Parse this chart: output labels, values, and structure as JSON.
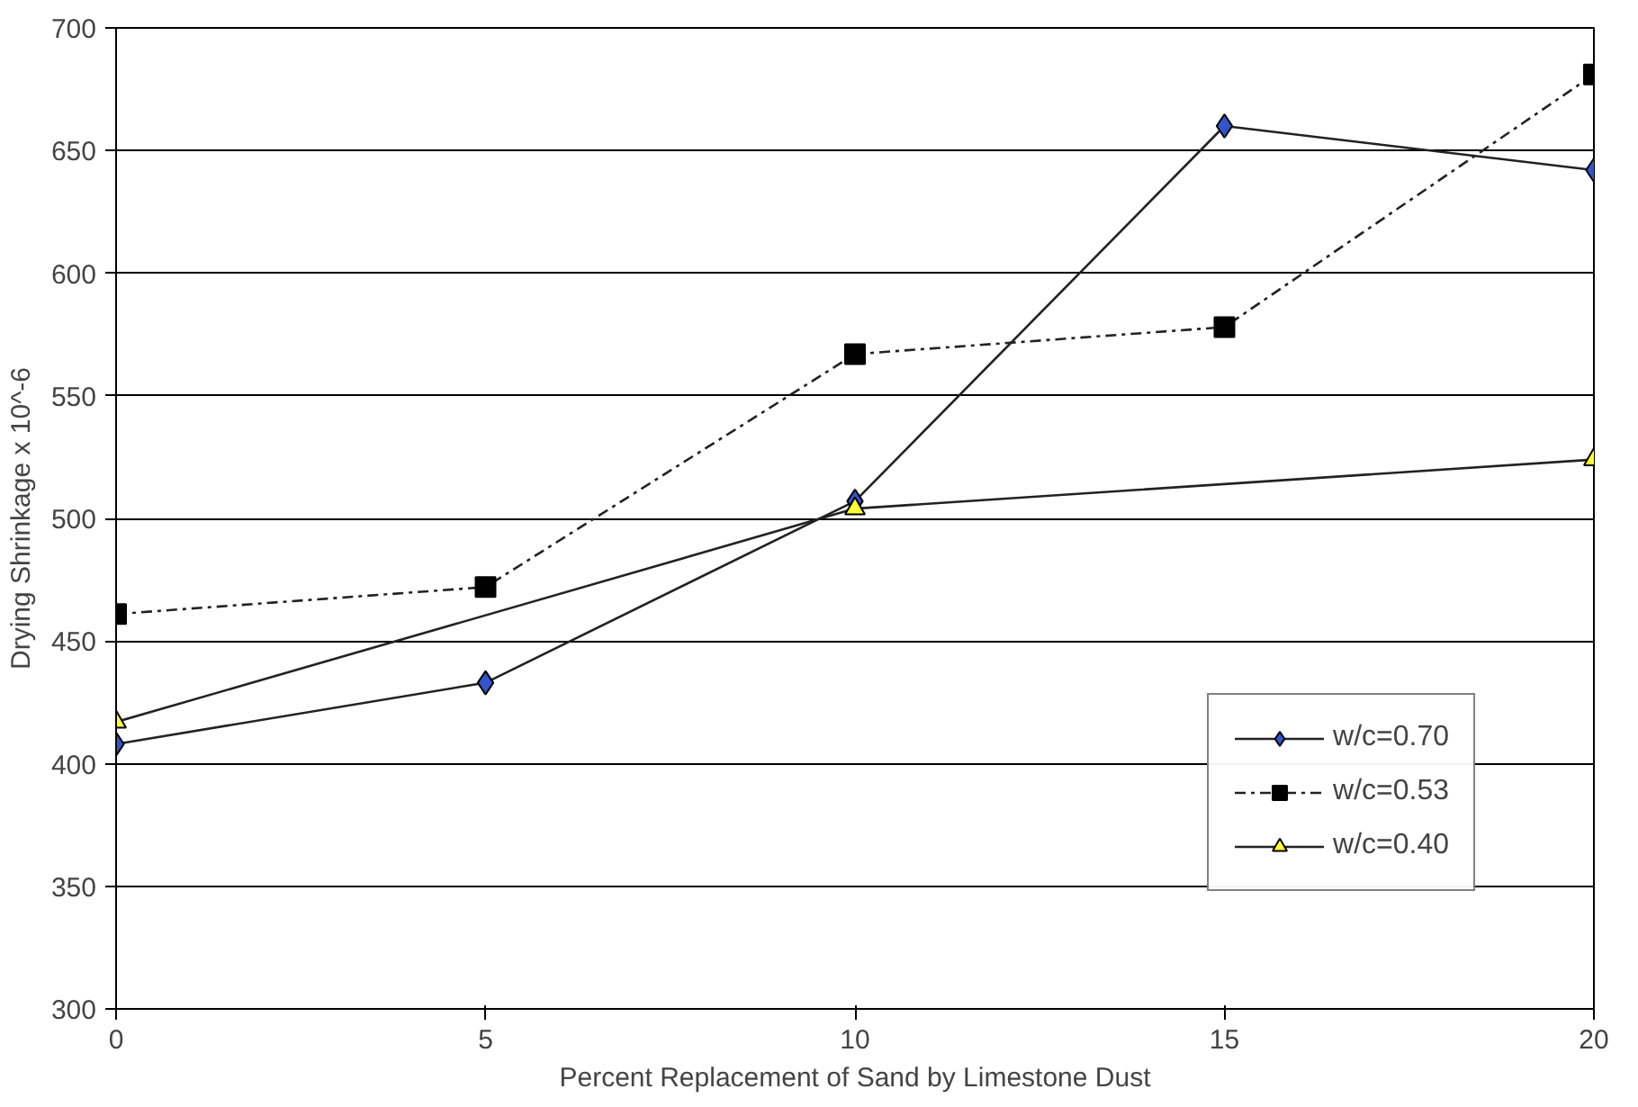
{
  "chart_data": {
    "type": "line",
    "xlabel": "Percent Replacement of Sand by Limestone Dust",
    "ylabel": "Drying Shrinkage x 10^-6",
    "xlim": [
      0,
      20
    ],
    "xticks": [
      0,
      5,
      10,
      15,
      20
    ],
    "ylim": [
      300,
      700
    ],
    "yticks": [
      300,
      350,
      400,
      450,
      500,
      550,
      600,
      650,
      700
    ],
    "grid": "y",
    "legend": "right",
    "series": [
      {
        "name": "w/c=0.70",
        "color": "#3355cc",
        "marker": "diamond",
        "line_style": "solid",
        "x": [
          0,
          5,
          10,
          15,
          20
        ],
        "values": [
          408,
          433,
          507,
          660,
          642
        ]
      },
      {
        "name": "w/c=0.53",
        "color": "#000000",
        "marker": "square",
        "line_style": "dashed",
        "x": [
          0,
          5,
          10,
          15,
          20
        ],
        "values": [
          461,
          472,
          567,
          578,
          681
        ]
      },
      {
        "name": "w/c=0.40",
        "color": "#ffff33",
        "marker": "triangle",
        "line_style": "solid",
        "x": [
          0,
          10,
          20
        ],
        "values": [
          417,
          504,
          524
        ]
      }
    ]
  }
}
